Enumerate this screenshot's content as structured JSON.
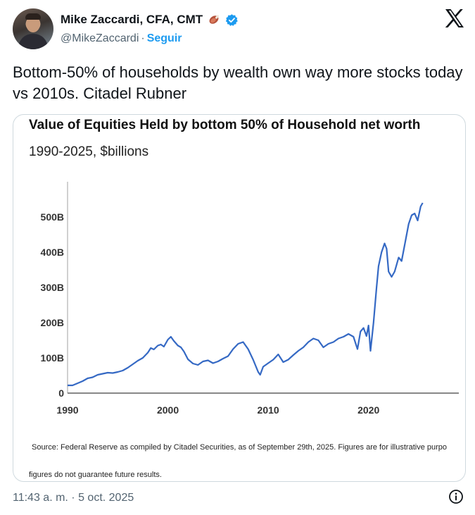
{
  "author": {
    "name": "Mike Zaccardi, CFA, CMT",
    "handle": "@MikeZaccardi",
    "separator": "·",
    "follow_label": "Seguir"
  },
  "tweet": {
    "text": "Bottom-50% of households by wealth own way more stocks today vs 2010s. Citadel Rubner",
    "timestamp": "11:43 a. m. · 5 oct. 2025"
  },
  "chart_data": {
    "type": "line",
    "title": "Value of Equities Held by bottom 50% of Household net worth",
    "subtitle": "1990-2025, $billions",
    "xlim": [
      1990,
      2029
    ],
    "ylim": [
      -10,
      600
    ],
    "x_ticks": [
      1990,
      2000,
      2010,
      2020
    ],
    "x_tick_labels": [
      "1990",
      "2000",
      "2010",
      "2020"
    ],
    "y_ticks": [
      0,
      100,
      200,
      300,
      400,
      500
    ],
    "y_tick_labels": [
      "0",
      "100B",
      "200B",
      "300B",
      "400B",
      "500B"
    ],
    "color": "#3569c4",
    "series": [
      {
        "x": [
          1990,
          1990.5,
          1991,
          1991.5,
          1992,
          1992.5,
          1993,
          1993.5,
          1994,
          1994.5,
          1995,
          1995.5,
          1996,
          1996.5,
          1997,
          1997.5,
          1998,
          1998.3,
          1998.6,
          1999,
          1999.3,
          1999.6,
          2000,
          2000.3,
          2000.6,
          2001,
          2001.3,
          2001.6,
          2002,
          2002.5,
          2003,
          2003.5,
          2004,
          2004.5,
          2005,
          2005.5,
          2006,
          2006.5,
          2007,
          2007.5,
          2008,
          2008.5,
          2009,
          2009.2,
          2009.5,
          2010,
          2010.5,
          2011,
          2011.5,
          2012,
          2012.5,
          2013,
          2013.5,
          2014,
          2014.5,
          2015,
          2015.5,
          2016,
          2016.5,
          2017,
          2017.5,
          2018,
          2018.5,
          2018.9,
          2019.2,
          2019.5,
          2019.8,
          2020,
          2020.2,
          2020.5,
          2020.8,
          2021,
          2021.3,
          2021.6,
          2021.8,
          2022,
          2022.3,
          2022.6,
          2023,
          2023.3,
          2023.6,
          2024,
          2024.3,
          2024.6,
          2024.9,
          2025.2,
          2025.4
        ],
        "y": [
          22,
          22,
          28,
          34,
          42,
          45,
          52,
          55,
          58,
          57,
          60,
          64,
          72,
          82,
          92,
          100,
          115,
          128,
          124,
          135,
          138,
          132,
          152,
          160,
          148,
          135,
          130,
          118,
          96,
          84,
          80,
          90,
          93,
          85,
          90,
          98,
          105,
          125,
          140,
          145,
          125,
          95,
          60,
          52,
          75,
          85,
          95,
          110,
          88,
          95,
          108,
          120,
          130,
          145,
          155,
          150,
          130,
          140,
          145,
          155,
          160,
          168,
          160,
          125,
          175,
          185,
          162,
          192,
          120,
          200,
          300,
          360,
          400,
          425,
          410,
          345,
          330,
          345,
          385,
          375,
          420,
          480,
          505,
          510,
          490,
          530,
          540
        ]
      }
    ],
    "source": "Source: Federal Reserve as compiled by Citadel Securities, as of September 29th, 2025. Figures are for illustrative purpo",
    "source_line2": "figures do not guarantee future results."
  }
}
